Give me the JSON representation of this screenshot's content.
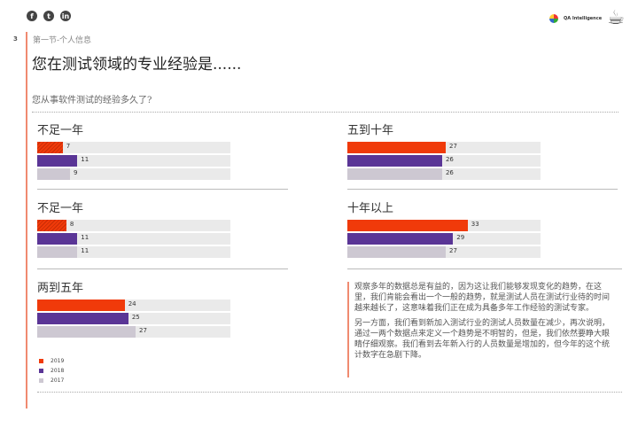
{
  "header": {
    "social": [
      {
        "icon": "facebook-icon",
        "glyph": "f"
      },
      {
        "icon": "twitter-icon",
        "glyph": "t"
      },
      {
        "icon": "linkedin-icon",
        "glyph": "in"
      }
    ],
    "logo_text": "QA Intelligence"
  },
  "page_number": "3",
  "section": "第一节-个人信息",
  "title": "您在测试领域的专业经验是......",
  "question": "您从事软件测试的经验多久了?",
  "colors": {
    "2019": "#f03a0a",
    "2018": "#5a3596",
    "2017": "#cdc8d2",
    "track": "#eaeaea",
    "accent": "#f08a70"
  },
  "chart_data": {
    "type": "bar",
    "orientation": "horizontal",
    "xlim": [
      0,
      53
    ],
    "series_names": [
      "2019",
      "2018",
      "2017"
    ],
    "groups": [
      {
        "label": "不足一年",
        "values": [
          7,
          11,
          9
        ],
        "hatched_2019": true
      },
      {
        "label": "不足一年",
        "values": [
          8,
          11,
          11
        ],
        "hatched_2019": true
      },
      {
        "label": "两到五年",
        "values": [
          24,
          25,
          27
        ]
      },
      {
        "label": "五到十年",
        "values": [
          27,
          26,
          26
        ]
      },
      {
        "label": "十年以上",
        "values": [
          33,
          29,
          27
        ]
      }
    ]
  },
  "legend": [
    "2019",
    "2018",
    "2017"
  ],
  "note": {
    "p1": "观察多年的数据总是有益的，因为这让我们能够发现变化的趋势，在这里，我们肯能会看出一个一般的趋势，就是测试人员在测试行业待的时间越来越长了，这意味着我们正在成为具备多年工作经验的测试专家。",
    "p2": "另一方面，我们看到新加入测试行业的测试人员数量在减少，再次说明，通过一两个数据点来定义一个趋势是不明智的，但是，我们依然要睁大眼睛仔细观察。我们看到去年新入行的人员数量是增加的，但今年的这个统计数字在急剧下降。"
  }
}
